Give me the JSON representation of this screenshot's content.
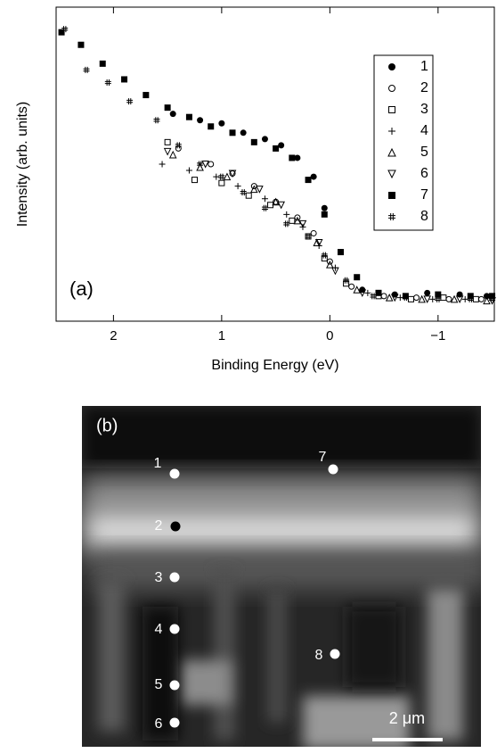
{
  "chart_data": {
    "type": "scatter",
    "annotation": "(a)",
    "x_label": "Binding Energy (eV)",
    "y_label": "Intensity (arb. units)",
    "xlim": [
      2.53,
      -1.52
    ],
    "ylim": [
      0,
      1
    ],
    "xticks": [
      2,
      1,
      0,
      {
        "value": -1,
        "label": "−1"
      }
    ],
    "legend": "upper right",
    "series": [
      {
        "name": "1",
        "marker": "circle-filled",
        "color": "#000",
        "x": [
          1.45,
          1.2,
          1.0,
          0.8,
          0.6,
          0.45,
          0.3,
          0.15,
          0.05,
          -0.1,
          -0.3,
          -0.6,
          -0.9,
          -1.2,
          -1.45
        ],
        "values": [
          0.66,
          0.64,
          0.63,
          0.6,
          0.58,
          0.56,
          0.52,
          0.46,
          0.36,
          0.22,
          0.1,
          0.085,
          0.09,
          0.085,
          0.08
        ]
      },
      {
        "name": "2",
        "marker": "circle-open",
        "color": "#000",
        "x": [
          1.4,
          1.1,
          0.9,
          0.7,
          0.5,
          0.3,
          0.15,
          0.0,
          -0.2,
          -0.5,
          -0.8,
          -1.1,
          -1.4
        ],
        "values": [
          0.55,
          0.5,
          0.47,
          0.43,
          0.38,
          0.33,
          0.28,
          0.19,
          0.11,
          0.08,
          0.075,
          0.07,
          0.07
        ]
      },
      {
        "name": "3",
        "marker": "square-open",
        "color": "#000",
        "x": [
          1.5,
          1.25,
          1.0,
          0.75,
          0.55,
          0.35,
          0.2,
          0.05,
          -0.15,
          -0.45,
          -0.75,
          -1.05,
          -1.35
        ],
        "values": [
          0.57,
          0.45,
          0.44,
          0.4,
          0.37,
          0.32,
          0.27,
          0.2,
          0.12,
          0.08,
          0.07,
          0.075,
          0.07
        ]
      },
      {
        "name": "4",
        "marker": "plus",
        "color": "#000",
        "x": [
          1.55,
          1.3,
          1.05,
          0.85,
          0.6,
          0.4,
          0.25,
          0.1,
          -0.05,
          -0.35,
          -0.65,
          -0.95,
          -1.25
        ],
        "values": [
          0.5,
          0.48,
          0.46,
          0.43,
          0.39,
          0.34,
          0.3,
          0.24,
          0.17,
          0.09,
          0.075,
          0.07,
          0.07
        ]
      },
      {
        "name": "5",
        "marker": "triangle-up-open",
        "color": "#000",
        "x": [
          1.45,
          1.2,
          0.95,
          0.7,
          0.5,
          0.3,
          0.12,
          0.0,
          -0.25,
          -0.55,
          -0.85,
          -1.15,
          -1.45
        ],
        "values": [
          0.53,
          0.49,
          0.46,
          0.42,
          0.38,
          0.32,
          0.25,
          0.18,
          0.1,
          0.075,
          0.07,
          0.07,
          0.065
        ]
      },
      {
        "name": "6",
        "marker": "triangle-down-open",
        "color": "#000",
        "x": [
          1.5,
          1.15,
          0.9,
          0.65,
          0.45,
          0.25,
          0.1,
          -0.05,
          -0.3,
          -0.6,
          -0.9,
          -1.2,
          -1.5
        ],
        "values": [
          0.54,
          0.5,
          0.47,
          0.42,
          0.37,
          0.31,
          0.25,
          0.16,
          0.09,
          0.075,
          0.07,
          0.07,
          0.065
        ]
      },
      {
        "name": "7",
        "marker": "square-filled",
        "color": "#000",
        "x": [
          2.48,
          2.3,
          2.1,
          1.9,
          1.7,
          1.5,
          1.3,
          1.1,
          0.9,
          0.7,
          0.5,
          0.35,
          0.2,
          0.05,
          -0.1,
          -0.25,
          -0.45,
          -0.7,
          -1.0,
          -1.3,
          -1.5
        ],
        "values": [
          0.92,
          0.88,
          0.82,
          0.77,
          0.72,
          0.68,
          0.65,
          0.62,
          0.6,
          0.57,
          0.55,
          0.52,
          0.45,
          0.34,
          0.22,
          0.14,
          0.09,
          0.08,
          0.085,
          0.08,
          0.08
        ]
      },
      {
        "name": "8",
        "marker": "hash",
        "color": "#000",
        "x": [
          2.45,
          2.25,
          2.05,
          1.85,
          1.6,
          1.4,
          1.2,
          1.0,
          0.8,
          0.6,
          0.4,
          0.2,
          0.05,
          -0.15,
          -0.4,
          -0.7,
          -1.0,
          -1.3,
          -1.5
        ],
        "values": [
          0.93,
          0.8,
          0.76,
          0.7,
          0.64,
          0.56,
          0.5,
          0.46,
          0.41,
          0.36,
          0.31,
          0.27,
          0.21,
          0.13,
          0.08,
          0.075,
          0.07,
          0.07,
          0.07
        ]
      }
    ]
  },
  "micrograph": {
    "label": "(b)",
    "points": [
      "1",
      "2",
      "3",
      "4",
      "5",
      "6",
      "7",
      "8"
    ],
    "scale_bar": "2 μm"
  }
}
